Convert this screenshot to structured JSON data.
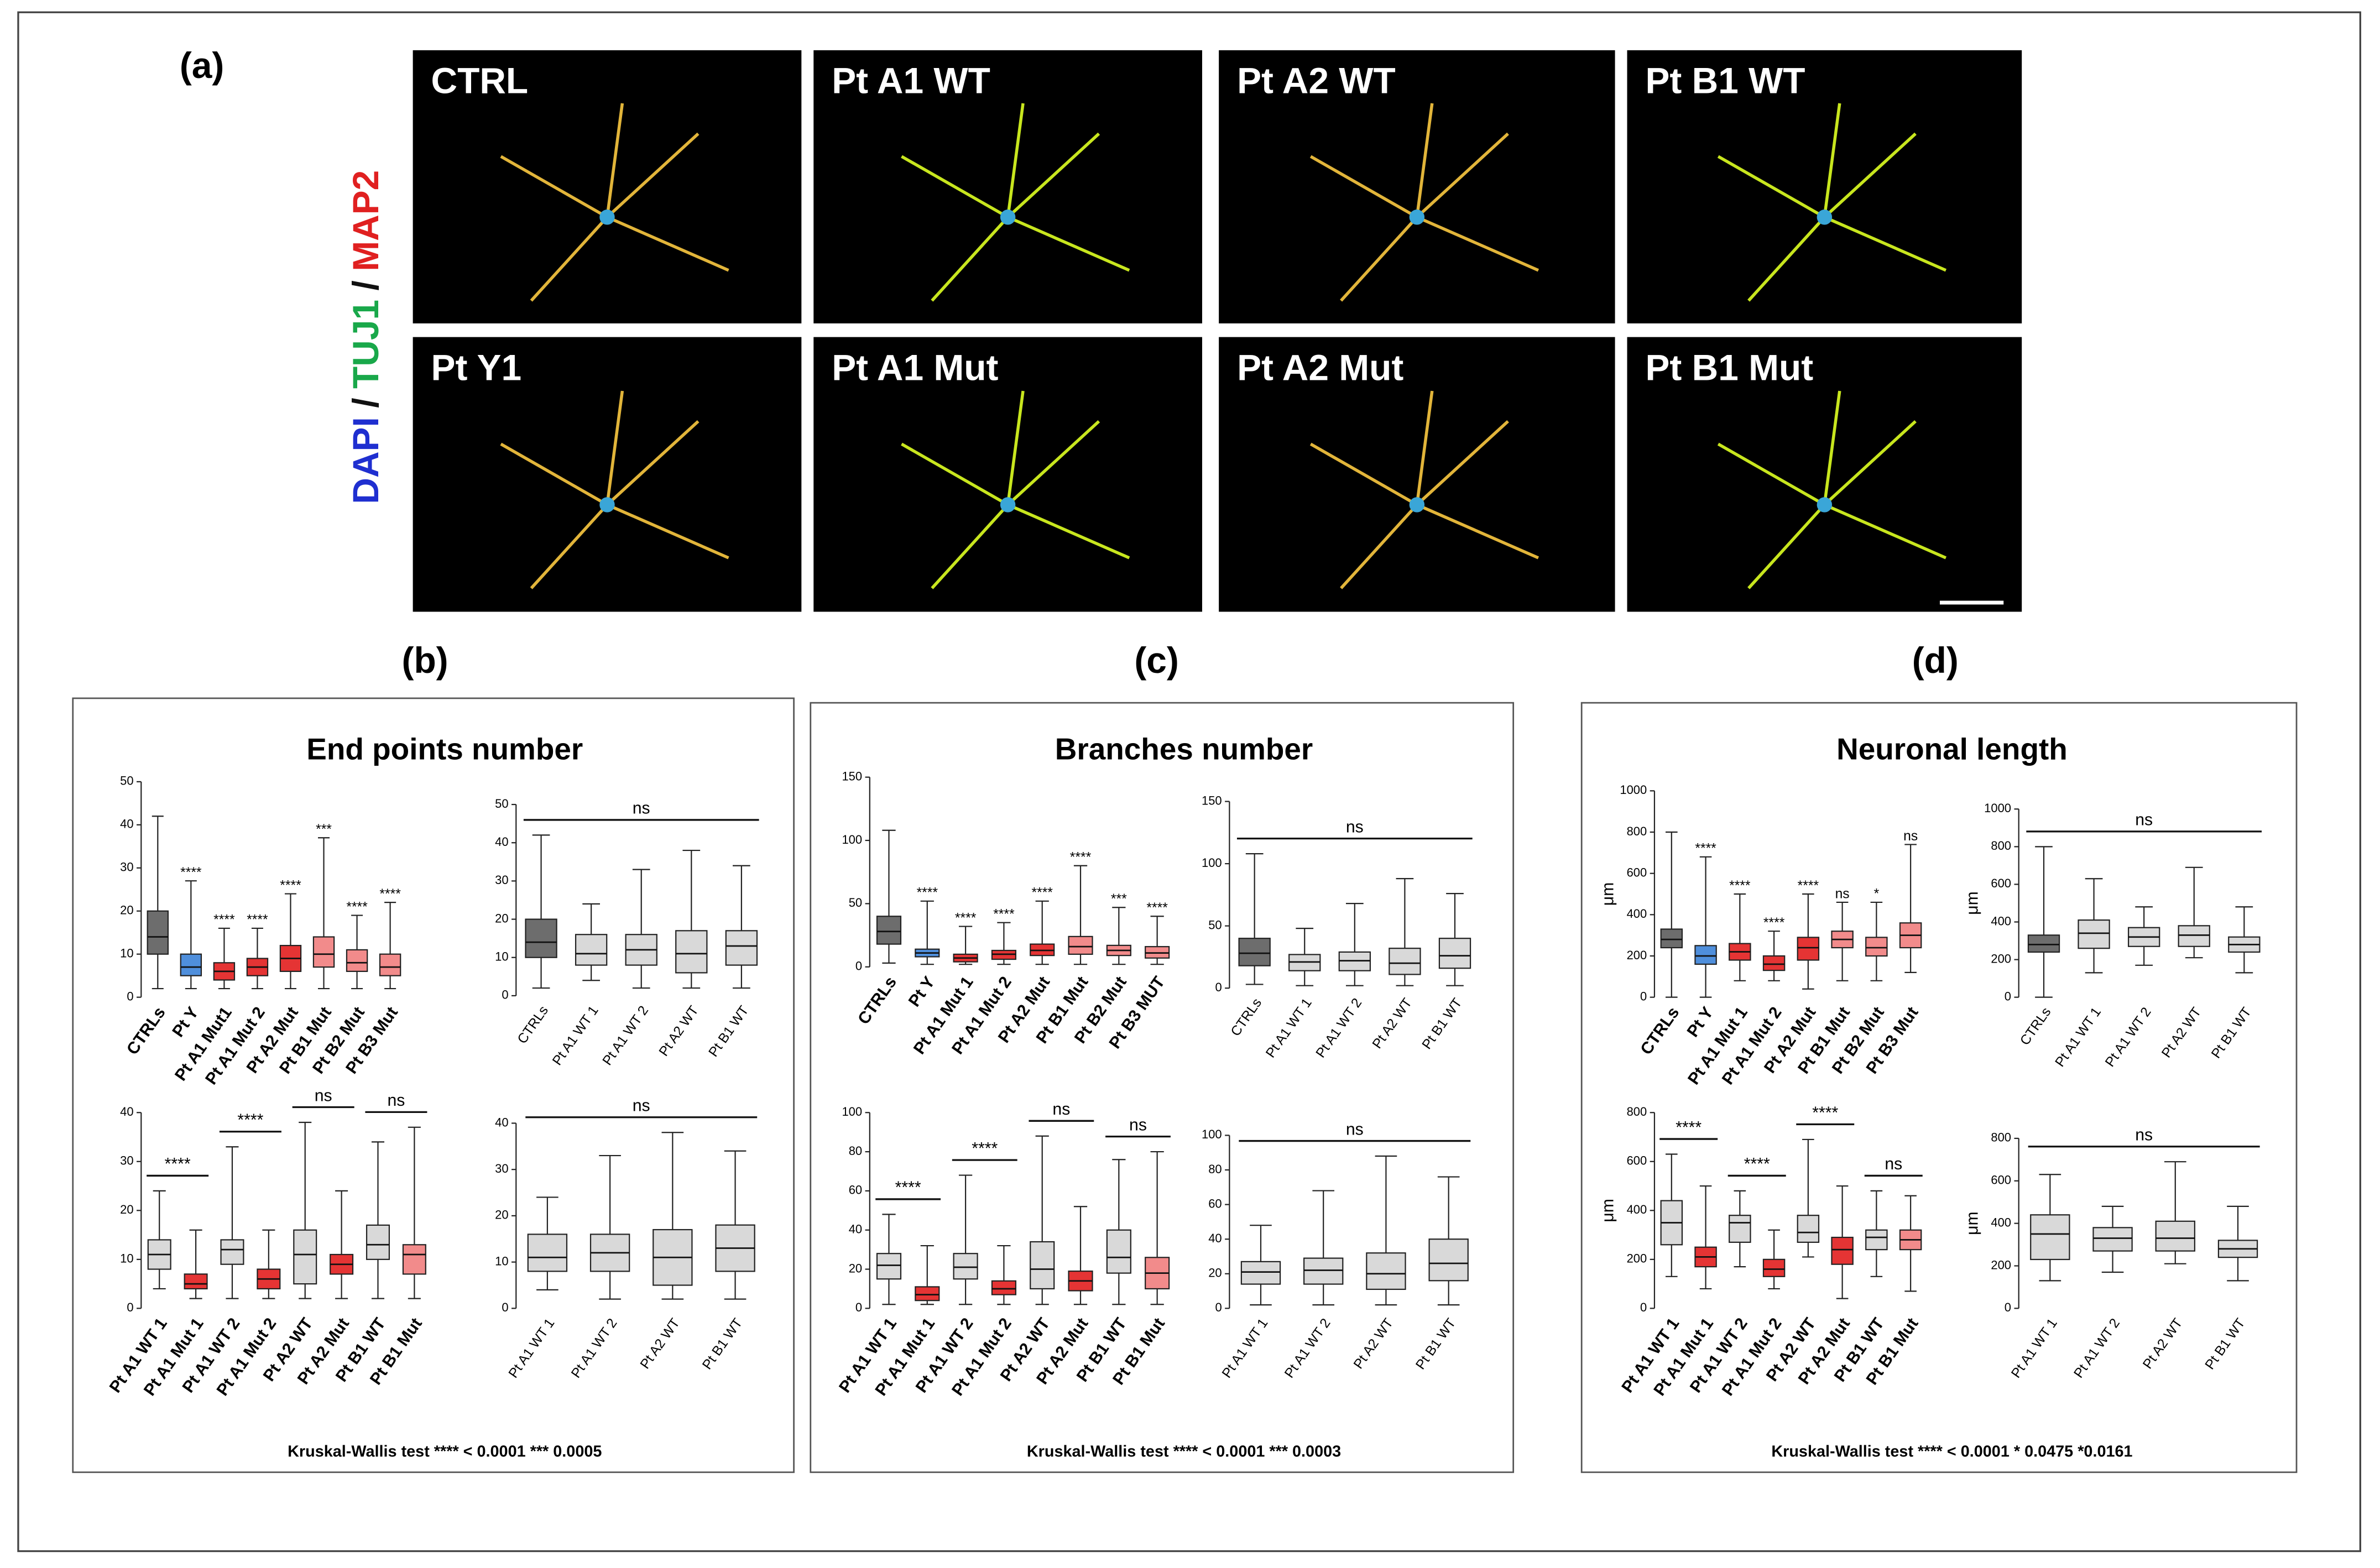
{
  "panel_labels": [
    "(a)",
    "(b)",
    "(c)",
    "(d)"
  ],
  "stain_label": [
    "DAPI",
    "/",
    "TUJ1",
    "/",
    "MAP2"
  ],
  "stain_colors": [
    "#1f2fd0",
    "#111111",
    "#19a84a",
    "#111111",
    "#e02020"
  ],
  "images": [
    "CTRL",
    "Pt A1 WT",
    "Pt A2 WT",
    "Pt B1 WT",
    "Pt Y1",
    "Pt A1 Mut",
    "Pt A2 Mut",
    "Pt B1 Mut"
  ],
  "groups": [
    {
      "title": "End points number",
      "footnote": "Kruskal-Wallis test  **** < 0.0001   *** 0.0005"
    },
    {
      "title": "Branches number",
      "footnote": "Kruskal-Wallis test  **** < 0.0001   *** 0.0003"
    },
    {
      "title": "Neuronal length",
      "footnote": "Kruskal-Wallis test  **** < 0.0001   * 0.0475   *0.0161"
    }
  ],
  "chart_data": [
    {
      "type": "box",
      "ylim": [
        0,
        50
      ],
      "yticks": [
        0,
        10,
        20,
        30,
        40,
        50
      ],
      "categories": [
        "CTRLs",
        "Pt Y",
        "Pt A1 Mut1",
        "Pt A1 Mut 2",
        "Pt A2 Mut",
        "Pt B1 Mut",
        "Pt B2 Mut",
        "Pt B3 Mut"
      ],
      "colors": [
        "#6d6d6d",
        "#4f8fdc",
        "#e53434",
        "#e53434",
        "#e53434",
        "#f28b8b",
        "#f28b8b",
        "#f28b8b"
      ],
      "boxes": [
        [
          2,
          10,
          14,
          20,
          42
        ],
        [
          2,
          5,
          7,
          10,
          27
        ],
        [
          2,
          4,
          6,
          8,
          16
        ],
        [
          2,
          5,
          7,
          9,
          16
        ],
        [
          2,
          6,
          9,
          12,
          24
        ],
        [
          2,
          7,
          10,
          14,
          37
        ],
        [
          2,
          6,
          8,
          11,
          19
        ],
        [
          2,
          5,
          7,
          10,
          22
        ]
      ],
      "annotations": [
        null,
        "****",
        "****",
        "****",
        "****",
        "***",
        "****",
        "****"
      ]
    },
    {
      "type": "box",
      "ylim": [
        0,
        50
      ],
      "yticks": [
        0,
        10,
        20,
        30,
        40,
        50
      ],
      "categories": [
        "CTRLs",
        "Pt A1 WT 1",
        "Pt A1 WT 2",
        "Pt A2 WT",
        "Pt B1 WT"
      ],
      "colors": [
        "#6d6d6d",
        "#d9d9d9",
        "#d9d9d9",
        "#d9d9d9",
        "#d9d9d9"
      ],
      "boxes": [
        [
          2,
          10,
          14,
          20,
          42
        ],
        [
          4,
          8,
          11,
          16,
          24
        ],
        [
          2,
          8,
          12,
          16,
          33
        ],
        [
          2,
          6,
          11,
          17,
          38
        ],
        [
          2,
          8,
          13,
          17,
          34
        ]
      ],
      "brackets": [
        {
          "between": [
            "CTRLs",
            "Pt B1 WT"
          ],
          "label": "ns"
        }
      ]
    },
    {
      "type": "box",
      "ylim": [
        0,
        40
      ],
      "yticks": [
        0,
        10,
        20,
        30,
        40
      ],
      "categories": [
        "Pt A1 WT 1",
        "Pt A1 Mut 1",
        "Pt A1 WT 2",
        "Pt A1 Mut 2",
        "Pt A2 WT",
        "Pt A2 Mut",
        "Pt B1 WT",
        "Pt B1 Mut"
      ],
      "colors": [
        "#d9d9d9",
        "#e53434",
        "#d9d9d9",
        "#e53434",
        "#d9d9d9",
        "#e53434",
        "#d9d9d9",
        "#f28b8b"
      ],
      "boxes": [
        [
          4,
          8,
          11,
          14,
          24
        ],
        [
          2,
          4,
          5,
          7,
          16
        ],
        [
          2,
          9,
          12,
          14,
          33
        ],
        [
          2,
          4,
          6,
          8,
          16
        ],
        [
          2,
          5,
          11,
          16,
          38
        ],
        [
          2,
          7,
          9,
          11,
          24
        ],
        [
          2,
          10,
          13,
          17,
          34
        ],
        [
          2,
          7,
          11,
          13,
          37
        ]
      ],
      "brackets": [
        {
          "between": [
            "Pt A1 WT 1",
            "Pt A1 Mut 1"
          ],
          "label": "****"
        },
        {
          "between": [
            "Pt A1 WT 2",
            "Pt A1 Mut 2"
          ],
          "label": "****"
        },
        {
          "between": [
            "Pt A2 WT",
            "Pt A2 Mut"
          ],
          "label": "ns"
        },
        {
          "between": [
            "Pt B1 WT",
            "Pt B1 Mut"
          ],
          "label": "ns"
        }
      ]
    },
    {
      "type": "box",
      "ylim": [
        0,
        40
      ],
      "yticks": [
        0,
        10,
        20,
        30,
        40
      ],
      "categories": [
        "Pt A1 WT 1",
        "Pt A1 WT 2",
        "Pt A2 WT",
        "Pt B1 WT"
      ],
      "colors": [
        "#d9d9d9",
        "#d9d9d9",
        "#d9d9d9",
        "#d9d9d9"
      ],
      "boxes": [
        [
          4,
          8,
          11,
          16,
          24
        ],
        [
          2,
          8,
          12,
          16,
          33
        ],
        [
          2,
          5,
          11,
          17,
          38
        ],
        [
          2,
          8,
          13,
          18,
          34
        ]
      ],
      "brackets": [
        {
          "between": [
            "Pt A1 WT 1",
            "Pt B1 WT"
          ],
          "label": "ns"
        }
      ]
    },
    {
      "type": "box",
      "ylim": [
        0,
        150
      ],
      "yticks": [
        0,
        50,
        100,
        150
      ],
      "categories": [
        "CTRLs",
        "Pt Y",
        "Pt A1 Mut 1",
        "Pt A1 Mut 2",
        "Pt A2 Mut",
        "Pt B1 Mut",
        "Pt B2 Mut",
        "Pt B3 MUT"
      ],
      "colors": [
        "#6d6d6d",
        "#4f8fdc",
        "#e53434",
        "#e53434",
        "#e53434",
        "#f28b8b",
        "#f28b8b",
        "#f28b8b"
      ],
      "boxes": [
        [
          3,
          18,
          28,
          40,
          108
        ],
        [
          2,
          8,
          11,
          14,
          52
        ],
        [
          2,
          4,
          7,
          10,
          32
        ],
        [
          2,
          6,
          10,
          13,
          35
        ],
        [
          2,
          9,
          13,
          18,
          52
        ],
        [
          2,
          10,
          16,
          24,
          80
        ],
        [
          2,
          9,
          13,
          17,
          47
        ],
        [
          2,
          7,
          11,
          16,
          40
        ]
      ],
      "annotations": [
        null,
        "****",
        "****",
        "****",
        "****",
        "****",
        "***",
        "****"
      ]
    },
    {
      "type": "box",
      "ylim": [
        0,
        150
      ],
      "yticks": [
        0,
        50,
        100,
        150
      ],
      "categories": [
        "CTRLs",
        "Pt A1 WT 1",
        "Pt A1 WT 2",
        "Pt A2 WT",
        "Pt B1 WT"
      ],
      "colors": [
        "#6d6d6d",
        "#d9d9d9",
        "#d9d9d9",
        "#d9d9d9",
        "#d9d9d9"
      ],
      "boxes": [
        [
          3,
          18,
          28,
          40,
          108
        ],
        [
          2,
          14,
          21,
          27,
          48
        ],
        [
          2,
          14,
          22,
          29,
          68
        ],
        [
          2,
          11,
          20,
          32,
          88
        ],
        [
          2,
          16,
          26,
          40,
          76
        ]
      ],
      "brackets": [
        {
          "between": [
            "CTRLs",
            "Pt B1 WT"
          ],
          "label": "ns"
        }
      ]
    },
    {
      "type": "box",
      "ylim": [
        0,
        100
      ],
      "yticks": [
        0,
        20,
        40,
        60,
        80,
        100
      ],
      "categories": [
        "Pt A1 WT 1",
        "Pt A1 Mut 1",
        "Pt A1 WT 2",
        "Pt A1 Mut 2",
        "Pt A2 WT",
        "Pt A2 Mut",
        "Pt B1 WT",
        "Pt B1 Mut"
      ],
      "colors": [
        "#d9d9d9",
        "#e53434",
        "#d9d9d9",
        "#e53434",
        "#d9d9d9",
        "#e53434",
        "#d9d9d9",
        "#f28b8b"
      ],
      "boxes": [
        [
          2,
          15,
          22,
          28,
          48
        ],
        [
          2,
          4,
          7,
          11,
          32
        ],
        [
          2,
          15,
          21,
          28,
          68
        ],
        [
          2,
          7,
          10,
          14,
          32
        ],
        [
          2,
          10,
          20,
          34,
          88
        ],
        [
          2,
          9,
          14,
          19,
          52
        ],
        [
          2,
          18,
          26,
          40,
          76
        ],
        [
          2,
          10,
          18,
          26,
          80
        ]
      ],
      "brackets": [
        {
          "between": [
            "Pt A1 WT 1",
            "Pt A1 Mut 1"
          ],
          "label": "****"
        },
        {
          "between": [
            "Pt A1 WT 2",
            "Pt A1 Mut 2"
          ],
          "label": "****"
        },
        {
          "between": [
            "Pt A2 WT",
            "Pt A2 Mut"
          ],
          "label": "ns"
        },
        {
          "between": [
            "Pt B1 WT",
            "Pt B1 Mut"
          ],
          "label": "ns"
        }
      ]
    },
    {
      "type": "box",
      "ylim": [
        0,
        100
      ],
      "yticks": [
        0,
        20,
        40,
        60,
        80,
        100
      ],
      "categories": [
        "Pt A1 WT 1",
        "Pt A1 WT 2",
        "Pt A2 WT",
        "Pt B1 WT"
      ],
      "colors": [
        "#d9d9d9",
        "#d9d9d9",
        "#d9d9d9",
        "#d9d9d9"
      ],
      "boxes": [
        [
          2,
          14,
          21,
          27,
          48
        ],
        [
          2,
          14,
          22,
          29,
          68
        ],
        [
          2,
          11,
          20,
          32,
          88
        ],
        [
          2,
          16,
          26,
          40,
          76
        ]
      ],
      "brackets": [
        {
          "between": [
            "Pt A1 WT 1",
            "Pt B1 WT"
          ],
          "label": "ns"
        }
      ]
    },
    {
      "type": "box",
      "ylabel": "μm",
      "ylim": [
        0,
        1000
      ],
      "yticks": [
        0,
        200,
        400,
        600,
        800,
        1000
      ],
      "categories": [
        "CTRLs",
        "Pt Y",
        "Pt A1 Mut 1",
        "Pt A1 Mut 2",
        "Pt A2 Mut",
        "Pt B1 Mut",
        "Pt B2 Mut",
        "Pt B3 Mut"
      ],
      "colors": [
        "#6d6d6d",
        "#4f8fdc",
        "#e53434",
        "#e53434",
        "#e53434",
        "#f28b8b",
        "#f28b8b",
        "#f28b8b"
      ],
      "boxes": [
        [
          0,
          240,
          280,
          330,
          800
        ],
        [
          0,
          160,
          200,
          250,
          680
        ],
        [
          80,
          180,
          220,
          260,
          500
        ],
        [
          80,
          130,
          160,
          200,
          320
        ],
        [
          40,
          180,
          240,
          290,
          500
        ],
        [
          80,
          240,
          280,
          320,
          460
        ],
        [
          80,
          200,
          240,
          290,
          460
        ],
        [
          120,
          240,
          300,
          360,
          740
        ]
      ],
      "annotations": [
        null,
        "****",
        "****",
        "****",
        "****",
        "ns",
        "*",
        "ns"
      ]
    },
    {
      "type": "box",
      "ylabel": "μm",
      "ylim": [
        0,
        1000
      ],
      "yticks": [
        0,
        200,
        400,
        600,
        800,
        1000
      ],
      "categories": [
        "CTRLs",
        "Pt A1 WT 1",
        "Pt A1 WT 2",
        "Pt A2 WT",
        "Pt B1 WT"
      ],
      "colors": [
        "#6d6d6d",
        "#d9d9d9",
        "#d9d9d9",
        "#d9d9d9",
        "#d9d9d9"
      ],
      "boxes": [
        [
          0,
          240,
          280,
          330,
          800
        ],
        [
          130,
          260,
          340,
          410,
          630
        ],
        [
          170,
          270,
          320,
          370,
          480
        ],
        [
          210,
          270,
          330,
          380,
          690
        ],
        [
          130,
          240,
          280,
          320,
          480
        ]
      ],
      "brackets": [
        {
          "between": [
            "CTRLs",
            "Pt B1 WT"
          ],
          "label": "ns"
        }
      ]
    },
    {
      "type": "box",
      "ylabel": "μm",
      "ylim": [
        0,
        800
      ],
      "yticks": [
        0,
        200,
        400,
        600,
        800
      ],
      "categories": [
        "Pt A1 WT 1",
        "Pt A1 Mut 1",
        "Pt A1 WT 2",
        "Pt A1 Mut 2",
        "Pt A2 WT",
        "Pt A2 Mut",
        "Pt B1 WT",
        "Pt B1 Mut"
      ],
      "colors": [
        "#d9d9d9",
        "#e53434",
        "#d9d9d9",
        "#e53434",
        "#d9d9d9",
        "#e53434",
        "#d9d9d9",
        "#f28b8b"
      ],
      "boxes": [
        [
          130,
          260,
          350,
          440,
          630
        ],
        [
          80,
          170,
          210,
          250,
          500
        ],
        [
          170,
          270,
          350,
          380,
          480
        ],
        [
          80,
          130,
          160,
          200,
          320
        ],
        [
          210,
          270,
          310,
          380,
          690
        ],
        [
          40,
          180,
          240,
          290,
          500
        ],
        [
          130,
          240,
          290,
          320,
          480
        ],
        [
          70,
          240,
          280,
          320,
          460
        ]
      ],
      "brackets": [
        {
          "between": [
            "Pt A1 WT 1",
            "Pt A1 Mut 1"
          ],
          "label": "****"
        },
        {
          "between": [
            "Pt A1 WT 2",
            "Pt A1 Mut 2"
          ],
          "label": "****"
        },
        {
          "between": [
            "Pt A2 WT",
            "Pt A2 Mut"
          ],
          "label": "****"
        },
        {
          "between": [
            "Pt B1 WT",
            "Pt B1 Mut"
          ],
          "label": "ns"
        }
      ]
    },
    {
      "type": "box",
      "ylabel": "μm",
      "ylim": [
        0,
        800
      ],
      "yticks": [
        0,
        200,
        400,
        600,
        800
      ],
      "categories": [
        "Pt A1 WT 1",
        "Pt A1 WT 2",
        "Pt A2 WT",
        "Pt B1 WT"
      ],
      "colors": [
        "#d9d9d9",
        "#d9d9d9",
        "#d9d9d9",
        "#d9d9d9"
      ],
      "boxes": [
        [
          130,
          230,
          350,
          440,
          630
        ],
        [
          170,
          270,
          330,
          380,
          480
        ],
        [
          210,
          270,
          330,
          410,
          690
        ],
        [
          130,
          240,
          280,
          320,
          480
        ]
      ],
      "brackets": [
        {
          "between": [
            "Pt A1 WT 1",
            "Pt B1 WT"
          ],
          "label": "ns"
        }
      ]
    }
  ]
}
